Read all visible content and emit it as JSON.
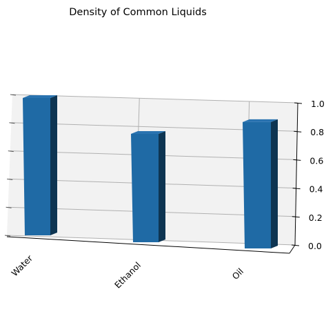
{
  "chart_data": {
    "type": "bar",
    "title": "Density of Common Liquids",
    "categories": [
      "Water",
      "Ethanol",
      "Oil"
    ],
    "values": [
      1.0,
      0.789,
      0.92
    ],
    "xlabel": "",
    "ylabel": "",
    "ylim": [
      0.0,
      1.0
    ],
    "yticks": [
      "0.0",
      "0.2",
      "0.4",
      "0.6",
      "0.8",
      "1.0"
    ],
    "grid": true,
    "projection": "3d",
    "colors": {
      "bar_front": "#1f6aa5",
      "bar_side": "#0e3552",
      "bar_top": "#2a73b0",
      "pane": "#f2f2f2",
      "grid": "#b0b0b0"
    }
  }
}
